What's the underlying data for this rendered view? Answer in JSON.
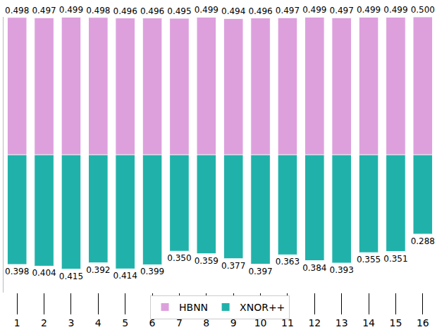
{
  "chart_data": {
    "type": "bar",
    "categories": [
      "1",
      "2",
      "3",
      "4",
      "5",
      "6",
      "7",
      "8",
      "9",
      "10",
      "11",
      "12",
      "13",
      "14",
      "15",
      "16"
    ],
    "series": [
      {
        "name": "HBNN",
        "color": "#dda0dd",
        "values": [
          0.498,
          0.497,
          0.499,
          0.498,
          0.496,
          0.496,
          0.495,
          0.499,
          0.494,
          0.496,
          0.497,
          0.499,
          0.497,
          0.499,
          0.499,
          0.5
        ],
        "value_labels": [
          "0.498",
          "0.497",
          "0.499",
          "0.498",
          "0.496",
          "0.496",
          "0.495",
          "0.499",
          "0.494",
          "0.496",
          "0.497",
          "0.499",
          "0.497",
          "0.499",
          "0.499",
          "0.500"
        ]
      },
      {
        "name": "XNOR++",
        "color": "#20b2aa",
        "axis": "y2",
        "values": [
          0.398,
          0.404,
          0.415,
          0.392,
          0.414,
          0.399,
          0.35,
          0.359,
          0.377,
          0.397,
          0.363,
          0.384,
          0.393,
          0.355,
          0.351,
          0.288
        ],
        "value_labels": [
          "0.398",
          "0.404",
          "0.415",
          "0.392",
          "0.414",
          "0.399",
          "0.350",
          "0.359",
          "0.377",
          "0.397",
          "0.363",
          "0.384",
          "0.393",
          "0.355",
          "0.351",
          "0.288"
        ]
      }
    ],
    "ylim": [
      0,
      0.5
    ],
    "y2lim": [
      0.5,
      0
    ],
    "data_labels": true,
    "tick_labels": "x",
    "legend": "bottom",
    "grid": false
  }
}
